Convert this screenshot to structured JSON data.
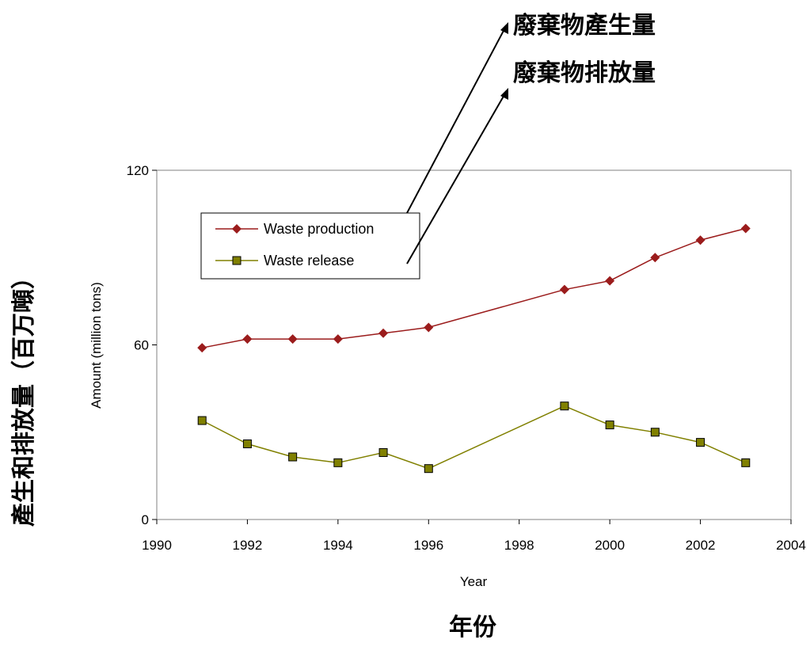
{
  "chart_data": {
    "type": "line",
    "title": "",
    "xlabel": "Year",
    "ylabel": "Amount (million tons)",
    "xlim": [
      1990,
      2004
    ],
    "ylim": [
      0,
      120
    ],
    "x_ticks": [
      "1990",
      "1992",
      "1994",
      "1996",
      "1998",
      "2000",
      "2002",
      "2004"
    ],
    "y_ticks": [
      "0",
      "60",
      "120"
    ],
    "grid": false,
    "legend": "upper-left",
    "series": [
      {
        "name": "Waste production",
        "color": "#9b1c1c",
        "marker": "diamond",
        "x": [
          1991,
          1992,
          1993,
          1994,
          1995,
          1996,
          1999,
          2000,
          2001,
          2002,
          2003
        ],
        "y": [
          59,
          62,
          62,
          62,
          64,
          66,
          79,
          82,
          90,
          96,
          100
        ]
      },
      {
        "name": "Waste release",
        "color": "#808000",
        "marker": "square",
        "x": [
          1991,
          1992,
          1993,
          1994,
          1995,
          1996,
          1999,
          2000,
          2001,
          2002,
          2003
        ],
        "y": [
          34,
          26,
          21.5,
          19.5,
          23,
          17.5,
          39,
          32.5,
          30,
          26.5,
          19.5
        ]
      }
    ]
  },
  "annotations": {
    "arrow_production_label": "廢棄物產生量",
    "arrow_release_label": "廢棄物排放量",
    "outer_ylabel": "產生和排放量（百万噸）",
    "outer_xlabel": "年份"
  }
}
